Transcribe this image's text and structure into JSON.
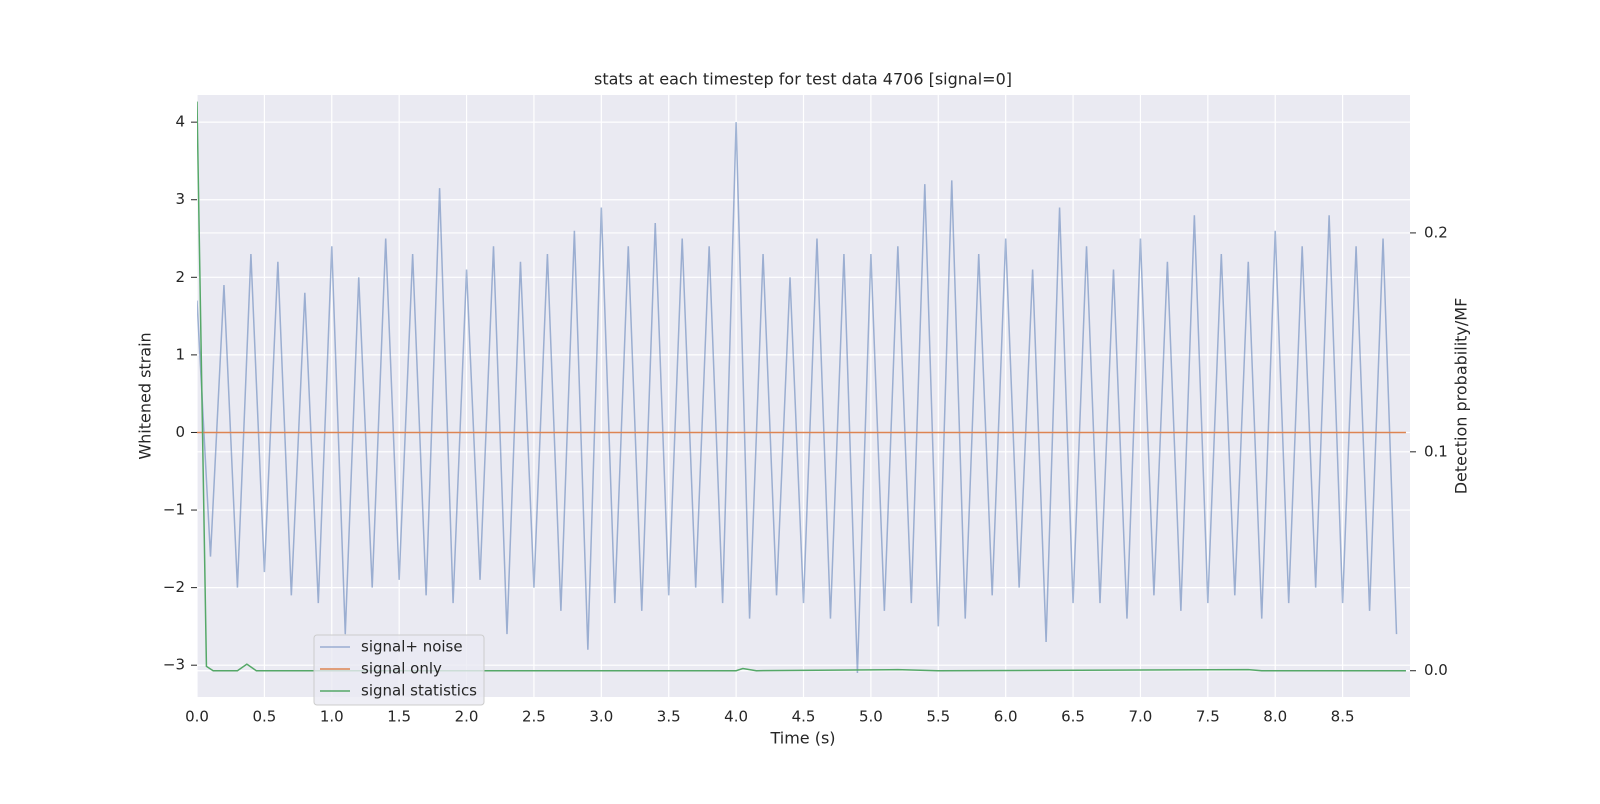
{
  "chart_data": {
    "type": "line",
    "title": "stats at each timestep for test data 4706 [signal=0]",
    "x_label": "Time (s)",
    "y_label": "Whitened strain",
    "y2_label": "Detection probability/MF",
    "xlim": [
      0,
      9
    ],
    "ylim": [
      -3.41,
      4.35
    ],
    "y2lim": [
      -0.012,
      0.263
    ],
    "xticks": [
      {
        "value": 0,
        "label": "0.0"
      },
      0.5,
      {
        "value": 1,
        "label": "1.0"
      },
      1.5,
      {
        "value": 2,
        "label": "2.0"
      },
      2.5,
      {
        "value": 3,
        "label": "3.0"
      },
      3.5,
      {
        "value": 4,
        "label": "4.0"
      },
      4.5,
      {
        "value": 5,
        "label": "5.0"
      },
      5.5,
      {
        "value": 6,
        "label": "6.0"
      },
      6.5,
      {
        "value": 7,
        "label": "7.0"
      },
      7.5,
      {
        "value": 8,
        "label": "8.0"
      },
      8.5
    ],
    "yticks": [
      {
        "value": -3,
        "label": "−3"
      },
      {
        "value": -2,
        "label": "−2"
      },
      {
        "value": -1,
        "label": "−1"
      },
      0,
      1,
      2,
      3,
      4
    ],
    "y2ticks": [
      {
        "value": 0,
        "label": "0.0"
      },
      0.1,
      0.2
    ],
    "grid": true,
    "legend": "lower left",
    "series": [
      {
        "name": "signal+ noise",
        "color": "#4c72b0",
        "opacity": 0.5,
        "x": [
          0.0,
          0.1,
          0.2,
          0.3,
          0.4,
          0.5,
          0.6,
          0.7,
          0.8,
          0.9,
          1.0,
          1.1,
          1.2,
          1.3,
          1.4,
          1.5,
          1.6,
          1.7,
          1.8,
          1.9,
          2.0,
          2.1,
          2.2,
          2.3,
          2.4,
          2.5,
          2.6,
          2.7,
          2.8,
          2.9,
          3.0,
          3.1,
          3.2,
          3.3,
          3.4,
          3.5,
          3.6,
          3.7,
          3.8,
          3.9,
          4.0,
          4.1,
          4.2,
          4.3,
          4.4,
          4.5,
          4.6,
          4.7,
          4.8,
          4.9,
          5.0,
          5.1,
          5.2,
          5.3,
          5.4,
          5.5,
          5.6,
          5.7,
          5.8,
          5.9,
          6.0,
          6.1,
          6.2,
          6.3,
          6.4,
          6.5,
          6.6,
          6.7,
          6.8,
          6.9,
          7.0,
          7.1,
          7.2,
          7.3,
          7.4,
          7.5,
          7.6,
          7.7,
          7.8,
          7.9,
          8.0,
          8.1,
          8.2,
          8.3,
          8.4,
          8.5,
          8.6,
          8.7,
          8.8,
          8.9
        ],
        "values": [
          1.7,
          -1.6,
          1.9,
          -2.0,
          2.3,
          -1.8,
          2.2,
          -2.1,
          1.8,
          -2.2,
          2.4,
          -2.6,
          2.0,
          -2.0,
          2.5,
          -1.9,
          2.3,
          -2.1,
          3.15,
          -2.2,
          2.1,
          -1.9,
          2.4,
          -2.6,
          2.2,
          -2.0,
          2.3,
          -2.3,
          2.6,
          -2.8,
          2.9,
          -2.2,
          2.4,
          -2.3,
          2.7,
          -2.1,
          2.5,
          -2.0,
          2.4,
          -2.2,
          4.0,
          -2.4,
          2.3,
          -2.1,
          2.0,
          -2.2,
          2.5,
          -2.4,
          2.3,
          -3.1,
          2.3,
          -2.3,
          2.4,
          -2.2,
          3.2,
          -2.5,
          3.25,
          -2.4,
          2.3,
          -2.1,
          2.5,
          -2.0,
          2.1,
          -2.7,
          2.9,
          -2.2,
          2.4,
          -2.2,
          2.1,
          -2.4,
          2.5,
          -2.1,
          2.2,
          -2.3,
          2.8,
          -2.2,
          2.3,
          -2.1,
          2.2,
          -2.4,
          2.6,
          -2.2,
          2.4,
          -2.0,
          2.8,
          -2.2,
          2.4,
          -2.3,
          2.5,
          -2.6
        ]
      },
      {
        "name": "signal only",
        "color": "#dd8452",
        "x": [
          0,
          8.97
        ],
        "values": [
          0,
          0
        ]
      },
      {
        "name": "signal statistics",
        "color": "#55a868",
        "axis": "y2",
        "x": [
          0,
          0.07,
          0.12,
          0.3,
          0.37,
          0.44,
          4.0,
          4.05,
          4.15,
          5.2,
          5.5,
          7.8,
          7.9,
          8.97
        ],
        "values": [
          0.26,
          0.002,
          0,
          0,
          0.003,
          0,
          0,
          0.001,
          0,
          0.0005,
          0,
          0.0005,
          0,
          0
        ]
      }
    ]
  }
}
